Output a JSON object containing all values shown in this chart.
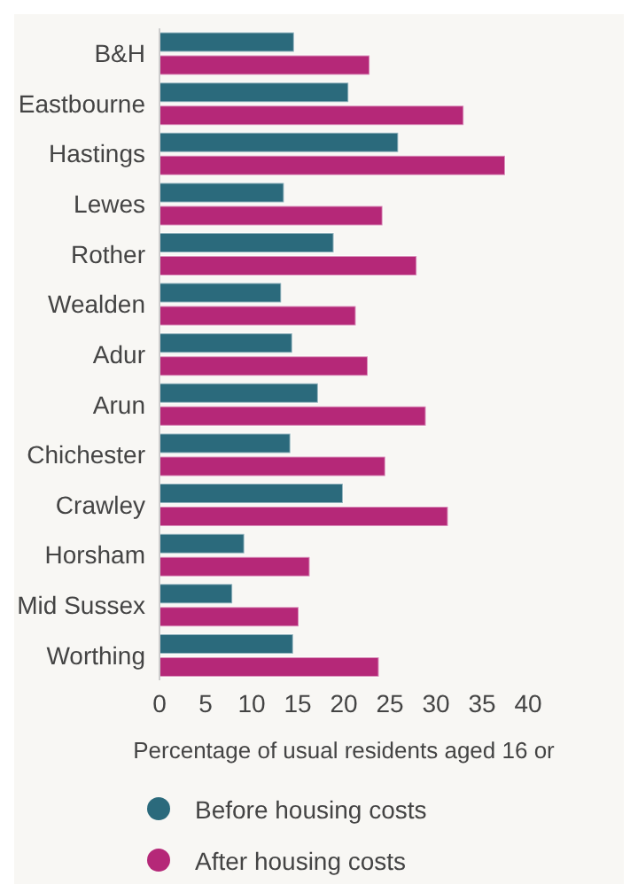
{
  "chart_data": {
    "type": "bar",
    "orientation": "horizontal",
    "categories": [
      "B&H",
      "Eastbourne",
      "Hastings",
      "Lewes",
      "Rother",
      "Wealden",
      "Adur",
      "Arun",
      "Chichester",
      "Crawley",
      "Horsham",
      "Mid Sussex",
      "Worthing"
    ],
    "series": [
      {
        "name": "Before housing costs",
        "color": "#2b6a7c",
        "values": [
          14.6,
          20.5,
          25.9,
          13.5,
          18.9,
          13.2,
          14.4,
          17.2,
          14.2,
          19.9,
          9.2,
          7.9,
          14.5
        ]
      },
      {
        "name": "After housing costs",
        "color": "#b52878",
        "values": [
          22.8,
          33.0,
          37.5,
          24.2,
          27.9,
          21.3,
          22.6,
          28.9,
          24.5,
          31.3,
          16.3,
          15.1,
          23.8
        ]
      }
    ],
    "xlim": [
      0,
      40
    ],
    "xticks": [
      0,
      5,
      10,
      15,
      20,
      25,
      30,
      35,
      40
    ],
    "xlabel": "Percentage of usual residents aged 16 or",
    "grid": false,
    "legend": "bottom"
  }
}
